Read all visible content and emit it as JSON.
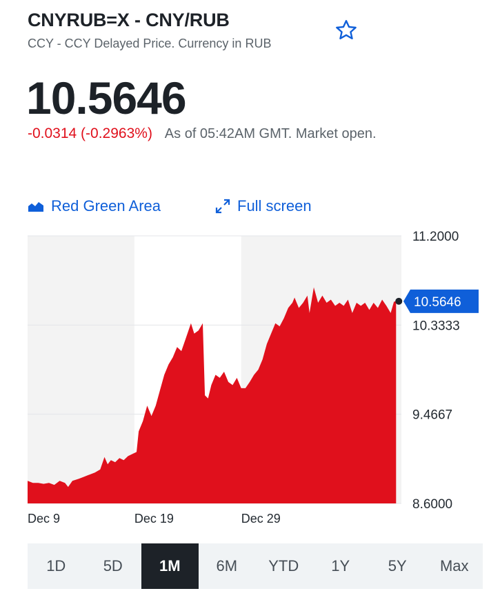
{
  "header": {
    "title": "CNYRUB=X - CNY/RUB",
    "subtitle": "CCY - CCY Delayed Price. Currency in RUB",
    "star_icon": "star-outline-icon"
  },
  "quote": {
    "price": "10.5646",
    "change": "-0.0314 (-0.2963%)",
    "as_of": "As of 05:42AM GMT. Market open."
  },
  "chart_tools": {
    "chart_type_label": "Red Green Area",
    "fullscreen_label": "Full screen"
  },
  "colors": {
    "negative": "#e0101c",
    "link": "#0f5fd9",
    "area_fill": "#e0101c",
    "shade_band": "#f3f3f3",
    "range_active_bg": "#1d2228"
  },
  "chart_data": {
    "type": "area",
    "y_ticks": [
      "11.2000",
      "10.3333",
      "9.4667",
      "8.6000"
    ],
    "ylim": [
      8.6,
      11.2
    ],
    "x_ticks": [
      {
        "label": "Dec 9",
        "day": 9
      },
      {
        "label": "Dec 19",
        "day": 19
      },
      {
        "label": "Dec 29",
        "day": 29
      }
    ],
    "xlim_days": [
      9,
      44
    ],
    "current_value_label": "10.5646",
    "current_value": 10.5646,
    "series": [
      {
        "points": [
          [
            9.0,
            8.82
          ],
          [
            9.5,
            8.8
          ],
          [
            10.0,
            8.8
          ],
          [
            10.5,
            8.79
          ],
          [
            11.0,
            8.8
          ],
          [
            11.5,
            8.78
          ],
          [
            12.0,
            8.82
          ],
          [
            12.5,
            8.8
          ],
          [
            12.8,
            8.76
          ],
          [
            13.2,
            8.82
          ],
          [
            13.8,
            8.84
          ],
          [
            14.3,
            8.86
          ],
          [
            14.8,
            8.88
          ],
          [
            15.3,
            8.9
          ],
          [
            15.8,
            8.93
          ],
          [
            16.2,
            9.05
          ],
          [
            16.5,
            8.98
          ],
          [
            16.8,
            9.02
          ],
          [
            17.2,
            9.0
          ],
          [
            17.6,
            9.04
          ],
          [
            18.0,
            9.02
          ],
          [
            18.4,
            9.06
          ],
          [
            18.8,
            9.08
          ],
          [
            19.2,
            9.1
          ],
          [
            19.4,
            9.3
          ],
          [
            19.8,
            9.4
          ],
          [
            20.2,
            9.55
          ],
          [
            20.6,
            9.45
          ],
          [
            21.0,
            9.55
          ],
          [
            21.4,
            9.7
          ],
          [
            21.8,
            9.85
          ],
          [
            22.2,
            9.95
          ],
          [
            22.6,
            10.02
          ],
          [
            23.0,
            10.12
          ],
          [
            23.4,
            10.08
          ],
          [
            23.8,
            10.2
          ],
          [
            24.3,
            10.35
          ],
          [
            24.6,
            10.25
          ],
          [
            25.0,
            10.28
          ],
          [
            25.4,
            10.35
          ],
          [
            25.6,
            9.65
          ],
          [
            25.9,
            9.62
          ],
          [
            26.2,
            9.75
          ],
          [
            26.6,
            9.85
          ],
          [
            27.0,
            9.82
          ],
          [
            27.4,
            9.88
          ],
          [
            27.8,
            9.78
          ],
          [
            28.2,
            9.75
          ],
          [
            28.6,
            9.82
          ],
          [
            29.0,
            9.72
          ],
          [
            29.4,
            9.72
          ],
          [
            29.8,
            9.78
          ],
          [
            30.2,
            9.85
          ],
          [
            30.6,
            9.9
          ],
          [
            31.0,
            10.0
          ],
          [
            31.4,
            10.15
          ],
          [
            31.8,
            10.25
          ],
          [
            32.2,
            10.35
          ],
          [
            32.6,
            10.32
          ],
          [
            33.0,
            10.4
          ],
          [
            33.4,
            10.5
          ],
          [
            33.8,
            10.55
          ],
          [
            34.0,
            10.6
          ],
          [
            34.4,
            10.5
          ],
          [
            34.8,
            10.55
          ],
          [
            35.2,
            10.62
          ],
          [
            35.4,
            10.45
          ],
          [
            35.8,
            10.7
          ],
          [
            36.2,
            10.55
          ],
          [
            36.6,
            10.62
          ],
          [
            37.0,
            10.55
          ],
          [
            37.4,
            10.58
          ],
          [
            37.8,
            10.52
          ],
          [
            38.2,
            10.55
          ],
          [
            38.6,
            10.52
          ],
          [
            39.0,
            10.58
          ],
          [
            39.4,
            10.45
          ],
          [
            39.8,
            10.55
          ],
          [
            40.2,
            10.52
          ],
          [
            40.6,
            10.55
          ],
          [
            41.0,
            10.48
          ],
          [
            41.4,
            10.55
          ],
          [
            41.8,
            10.5
          ],
          [
            42.2,
            10.58
          ],
          [
            42.6,
            10.52
          ],
          [
            43.0,
            10.45
          ],
          [
            43.3,
            10.56
          ],
          [
            43.5,
            10.5646
          ]
        ]
      }
    ]
  },
  "ranges": [
    {
      "label": "1D"
    },
    {
      "label": "5D"
    },
    {
      "label": "1M"
    },
    {
      "label": "6M"
    },
    {
      "label": "YTD"
    },
    {
      "label": "1Y"
    },
    {
      "label": "5Y"
    },
    {
      "label": "Max"
    }
  ],
  "active_range": "1M"
}
